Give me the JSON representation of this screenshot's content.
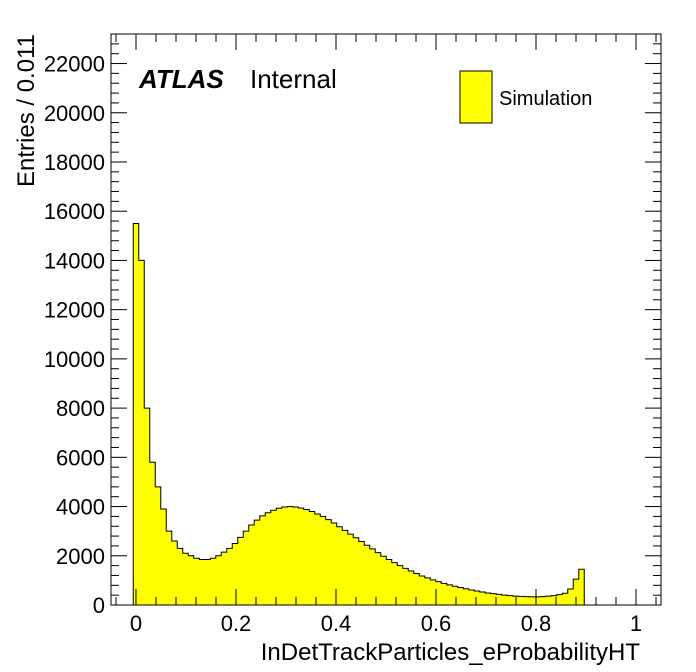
{
  "chart_data": {
    "type": "bar",
    "histogram": true,
    "title": "",
    "xlabel": "InDetTrackParticles_eProbabilityHT",
    "ylabel": "Entries / 0.011",
    "xlim": [
      -0.05,
      1.05
    ],
    "ylim": [
      0,
      23200
    ],
    "bin_width": 0.011,
    "x_start": -0.0055,
    "x_ticks": [
      {
        "value": 0,
        "label": "0"
      },
      {
        "value": 0.2,
        "label": "0.2"
      },
      {
        "value": 0.4,
        "label": "0.4"
      },
      {
        "value": 0.6,
        "label": "0.6"
      },
      {
        "value": 0.8,
        "label": "0.8"
      },
      {
        "value": 1.0,
        "label": "1"
      }
    ],
    "y_ticks": [
      {
        "value": 0,
        "label": "0"
      },
      {
        "value": 2000,
        "label": "2000"
      },
      {
        "value": 4000,
        "label": "4000"
      },
      {
        "value": 6000,
        "label": "6000"
      },
      {
        "value": 8000,
        "label": "8000"
      },
      {
        "value": 10000,
        "label": "10000"
      },
      {
        "value": 12000,
        "label": "12000"
      },
      {
        "value": 14000,
        "label": "14000"
      },
      {
        "value": 16000,
        "label": "16000"
      },
      {
        "value": 18000,
        "label": "18000"
      },
      {
        "value": 20000,
        "label": "20000"
      },
      {
        "value": 22000,
        "label": "22000"
      }
    ],
    "series": [
      {
        "name": "Simulation",
        "color": "#ffff00",
        "values": [
          15500,
          14000,
          8000,
          5800,
          4800,
          3900,
          3000,
          2600,
          2300,
          2100,
          2000,
          1900,
          1850,
          1850,
          1900,
          2000,
          2150,
          2300,
          2500,
          2750,
          3000,
          3250,
          3450,
          3620,
          3750,
          3850,
          3930,
          3980,
          4000,
          3980,
          3940,
          3880,
          3800,
          3700,
          3600,
          3470,
          3330,
          3180,
          3030,
          2880,
          2730,
          2580,
          2430,
          2280,
          2130,
          1980,
          1850,
          1720,
          1600,
          1490,
          1380,
          1280,
          1180,
          1100,
          1020,
          950,
          880,
          820,
          760,
          710,
          660,
          610,
          570,
          530,
          490,
          460,
          430,
          400,
          380,
          360,
          350,
          340,
          330,
          330,
          340,
          360,
          380,
          420,
          480,
          650,
          1050,
          1450
        ]
      }
    ],
    "legend": {
      "position": "top-right",
      "entries": [
        "Simulation"
      ]
    },
    "grid": false,
    "annotations": {
      "atlas": "ATLAS",
      "label": "Internal"
    }
  }
}
